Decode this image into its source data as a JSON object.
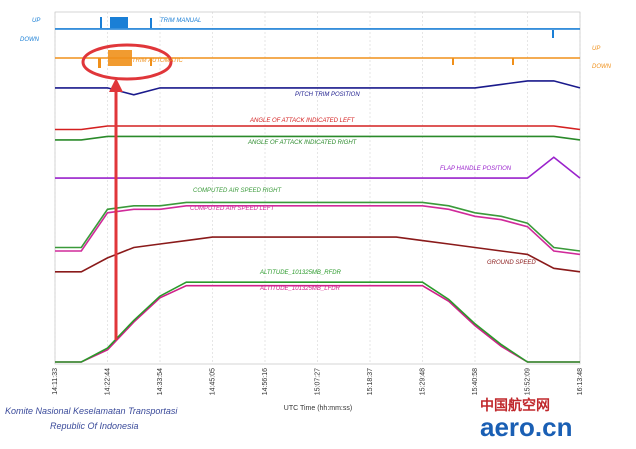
{
  "chart_data": {
    "type": "line",
    "categories": [
      "14:11:33",
      null,
      "14:22:44",
      null,
      "14:33:54",
      null,
      "14:45:05",
      null,
      "14:56:16",
      null,
      "15:07:27",
      null,
      "15:18:37",
      null,
      "15:29:48",
      null,
      "15:40:58",
      null,
      "15:52:09",
      null,
      "16:13:48"
    ],
    "ylim": [
      0,
      100
    ],
    "grid": true,
    "xlabel": "UTC Time (hh:mm:ss)",
    "annotations": {
      "left_up": "UP",
      "left_down": "DOWN",
      "right_up": "UP",
      "right_down": "DOWN"
    },
    "footer": [
      "Komite Nasional Keselamatan Transportasi",
      "Republic Of Indonesia"
    ],
    "watermark": [
      "中国航空网",
      "aero.cn"
    ],
    "series": [
      {
        "name": "TRIM MANUAL",
        "color": "#1a7fd6",
        "values": [
          96,
          96,
          96,
          96,
          96,
          96,
          96,
          96,
          96,
          96,
          96,
          96,
          96,
          96,
          96,
          96,
          96,
          96,
          96,
          96,
          96
        ]
      },
      {
        "name": "TRIM AUTOMATIC",
        "color": "#f0901a",
        "values": [
          87.6,
          87.6,
          87.6,
          87.6,
          87.6,
          87.6,
          87.6,
          87.6,
          87.6,
          87.6,
          87.6,
          87.6,
          87.6,
          87.6,
          87.6,
          87.6,
          87.6,
          87.6,
          87.6,
          87.6,
          87.6
        ]
      },
      {
        "name": "PITCH TRIM POSITION",
        "color": "#1a1a8c",
        "values": [
          79,
          79,
          79,
          77,
          79,
          79,
          79,
          79,
          79,
          79,
          79,
          79,
          79,
          79,
          79,
          79,
          79,
          80,
          81,
          81,
          79
        ]
      },
      {
        "name": "ANGLE OF ATTACK INDICATED LEFT",
        "color": "#d42020",
        "values": [
          67,
          67,
          68,
          68,
          68,
          68,
          68,
          68,
          68,
          68,
          68,
          68,
          68,
          68,
          68,
          68,
          68,
          68,
          68,
          68,
          67
        ]
      },
      {
        "name": "ANGLE OF ATTACK INDICATED RIGHT",
        "color": "#2a8a2a",
        "values": [
          64,
          64,
          65,
          65,
          65,
          65,
          65,
          65,
          65,
          65,
          65,
          65,
          65,
          65,
          65,
          65,
          65,
          65,
          65,
          65,
          64
        ]
      },
      {
        "name": "FLAP HANDLE POSITION",
        "color": "#9a22cc",
        "values": [
          53,
          53,
          53,
          53,
          53,
          53,
          53,
          53,
          53,
          53,
          53,
          53,
          53,
          53,
          53,
          53,
          53,
          53,
          53,
          59,
          53
        ]
      },
      {
        "name": "COMPUTED AIR SPEED RIGHT",
        "color": "#3a9a3a",
        "values": [
          33,
          33,
          44,
          45,
          45,
          46,
          46,
          46,
          46,
          46,
          46,
          46,
          46,
          46,
          46,
          45,
          43,
          42,
          40,
          33,
          32
        ]
      },
      {
        "name": "COMPUTED AIR SPEED LEFT",
        "color": "#d02a9a",
        "values": [
          32,
          32,
          43,
          44,
          44,
          45,
          45,
          45,
          45,
          45,
          45,
          45,
          45,
          45,
          45,
          44,
          42,
          41,
          39,
          32,
          31
        ]
      },
      {
        "name": "GROUND SPEED",
        "color": "#8a1a1a",
        "values": [
          26,
          26,
          30,
          33,
          34,
          35,
          36,
          36,
          36,
          36,
          36,
          36,
          36,
          36,
          35,
          34,
          33,
          32,
          31,
          27,
          26
        ]
      },
      {
        "name": "ALTITUDE_101325MB_RFDR",
        "color": "#2a9a2a",
        "values": [
          0,
          0,
          4,
          12,
          19,
          23,
          23,
          23,
          23,
          23,
          23,
          23,
          23,
          23,
          23,
          18,
          11,
          5,
          0,
          0,
          0
        ]
      },
      {
        "name": "ALTITUDE_101325MB_LFDR",
        "color": "#d0208a",
        "values": [
          0,
          0,
          3.5,
          11.5,
          18.5,
          22,
          22,
          22,
          22,
          22,
          22,
          22,
          22,
          22,
          22,
          17.5,
          10.5,
          4.5,
          0,
          0,
          0
        ]
      }
    ]
  }
}
